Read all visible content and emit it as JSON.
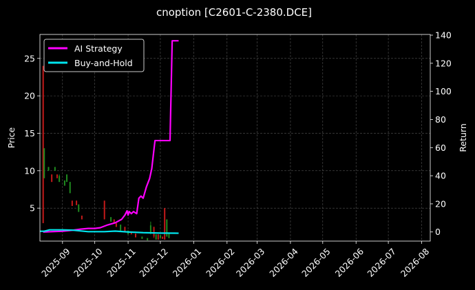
{
  "chart_data": {
    "type": "line",
    "title": "cnoption [C2601-C-2380.DCE]",
    "ylabel_left": "Price",
    "ylabel_right": "Return",
    "xlabel": "",
    "x_ticks": [
      "2025-09",
      "2025-10",
      "2025-11",
      "2025-12",
      "2026-01",
      "2026-02",
      "2026-03",
      "2026-04",
      "2026-05",
      "2026-06",
      "2026-07",
      "2026-08"
    ],
    "x_tick_dates": [
      "2025-09-01",
      "2025-10-01",
      "2025-11-01",
      "2025-12-01",
      "2026-01-01",
      "2026-02-01",
      "2026-03-01",
      "2026-04-01",
      "2026-05-01",
      "2026-06-01",
      "2026-07-01",
      "2026-08-01"
    ],
    "x_range": [
      "2025-08-11",
      "2026-08-09"
    ],
    "left_ticks": [
      5,
      10,
      15,
      20,
      25
    ],
    "ylim_left": [
      0.6,
      28.2
    ],
    "right_ticks": [
      0,
      20,
      40,
      60,
      80,
      100,
      120,
      140
    ],
    "ylim_right": [
      -6.5,
      140.5
    ],
    "grid": true,
    "legend_position": "upper-left",
    "colors": {
      "background": "#000000",
      "ai_strategy": "#ff00ff",
      "buy_and_hold": "#00e5ee",
      "candle_up": "#1f8b1f",
      "candle_down": "#c41a1a",
      "grid": "#555555"
    },
    "series": [
      {
        "name": "AI Strategy",
        "axis": "right",
        "points": [
          [
            "2025-08-14",
            0
          ],
          [
            "2025-09-01",
            0.5
          ],
          [
            "2025-09-10",
            1.2
          ],
          [
            "2025-09-18",
            2.0
          ],
          [
            "2025-09-25",
            2.5
          ],
          [
            "2025-10-01",
            2.5
          ],
          [
            "2025-10-06",
            3.0
          ],
          [
            "2025-10-13",
            5.0
          ],
          [
            "2025-10-20",
            6.5
          ],
          [
            "2025-10-26",
            9.0
          ],
          [
            "2025-10-29",
            12.0
          ],
          [
            "2025-10-31",
            15.0
          ],
          [
            "2025-11-01",
            12.0
          ],
          [
            "2025-11-02",
            14.5
          ],
          [
            "2025-11-04",
            13.0
          ],
          [
            "2025-11-06",
            14.5
          ],
          [
            "2025-11-09",
            13.0
          ],
          [
            "2025-11-11",
            24.0
          ],
          [
            "2025-11-13",
            25.5
          ],
          [
            "2025-11-15",
            24.0
          ],
          [
            "2025-11-18",
            32.0
          ],
          [
            "2025-11-21",
            38.0
          ],
          [
            "2025-11-23",
            45.0
          ],
          [
            "2025-11-26",
            65.0
          ],
          [
            "2025-12-10",
            65.0
          ],
          [
            "2025-12-12",
            136.0
          ],
          [
            "2025-12-18",
            136.0
          ]
        ]
      },
      {
        "name": "Buy-and-Hold",
        "axis": "right",
        "points": [
          [
            "2025-08-11",
            0.5
          ],
          [
            "2025-08-15",
            0.5
          ],
          [
            "2025-08-20",
            1.5
          ],
          [
            "2025-09-01",
            1.5
          ],
          [
            "2025-09-10",
            1.3
          ],
          [
            "2025-09-25",
            0.2
          ],
          [
            "2025-10-10",
            0.2
          ],
          [
            "2025-10-20",
            0.6
          ],
          [
            "2025-11-01",
            0.0
          ],
          [
            "2025-11-15",
            -0.5
          ],
          [
            "2025-12-01",
            -0.8
          ],
          [
            "2025-12-18",
            -0.9
          ]
        ]
      }
    ],
    "candles": [
      {
        "date": "2025-08-14",
        "open": 24,
        "close": 3,
        "high": 24,
        "low": 3
      },
      {
        "date": "2025-08-15",
        "open": 9,
        "close": 13,
        "high": 13,
        "low": 9
      },
      {
        "date": "2025-08-19",
        "open": 10,
        "close": 10.5,
        "high": 10.5,
        "low": 10
      },
      {
        "date": "2025-08-22",
        "open": 9.5,
        "close": 8.5,
        "high": 9.5,
        "low": 8.5
      },
      {
        "date": "2025-08-25",
        "open": 10,
        "close": 10.5,
        "high": 10.5,
        "low": 10
      },
      {
        "date": "2025-08-27",
        "open": 9.5,
        "close": 9,
        "high": 9.5,
        "low": 9
      },
      {
        "date": "2025-08-29",
        "open": 8.5,
        "close": 9.3,
        "high": 9.5,
        "low": 8.5
      },
      {
        "date": "2025-09-03",
        "open": 8,
        "close": 8.7,
        "high": 8.7,
        "low": 8
      },
      {
        "date": "2025-09-05",
        "open": 8.5,
        "close": 9.5,
        "high": 9.5,
        "low": 8.5
      },
      {
        "date": "2025-09-08",
        "open": 7,
        "close": 8.5,
        "high": 8.5,
        "low": 7
      },
      {
        "date": "2025-09-10",
        "open": 6,
        "close": 5.3,
        "high": 6,
        "low": 5.3
      },
      {
        "date": "2025-09-14",
        "open": 6,
        "close": 5.4,
        "high": 6,
        "low": 5.4
      },
      {
        "date": "2025-09-16",
        "open": 4.5,
        "close": 5.5,
        "high": 5.5,
        "low": 4.5
      },
      {
        "date": "2025-09-19",
        "open": 4,
        "close": 3.5,
        "high": 4,
        "low": 3.5
      },
      {
        "date": "2025-10-10",
        "open": 6,
        "close": 3.5,
        "high": 6,
        "low": 3.5
      },
      {
        "date": "2025-10-16",
        "open": 3.2,
        "close": 3.8,
        "high": 3.8,
        "low": 3.2
      },
      {
        "date": "2025-10-19",
        "open": 3.5,
        "close": 3.0,
        "high": 3.5,
        "low": 3.0
      },
      {
        "date": "2025-10-21",
        "open": 3.0,
        "close": 2.5,
        "high": 3.0,
        "low": 2.5
      },
      {
        "date": "2025-10-25",
        "open": 2.0,
        "close": 2.8,
        "high": 2.8,
        "low": 2.0
      },
      {
        "date": "2025-10-29",
        "open": 2.5,
        "close": 1.8,
        "high": 2.5,
        "low": 1.8
      },
      {
        "date": "2025-11-01",
        "open": 1.5,
        "close": 2.0,
        "high": 2.0,
        "low": 1.5
      },
      {
        "date": "2025-11-04",
        "open": 1.8,
        "close": 1.5,
        "high": 1.8,
        "low": 1.5
      },
      {
        "date": "2025-11-08",
        "open": 1.6,
        "close": 1.1,
        "high": 1.6,
        "low": 1.1
      },
      {
        "date": "2025-11-14",
        "open": 0.9,
        "close": 1.2,
        "high": 1.2,
        "low": 0.9
      },
      {
        "date": "2025-11-19",
        "open": 0.7,
        "close": 1.0,
        "high": 1.0,
        "low": 0.7
      },
      {
        "date": "2025-11-22",
        "open": 1.8,
        "close": 2.7,
        "high": 3.2,
        "low": 1.5
      },
      {
        "date": "2025-11-25",
        "open": 2.5,
        "close": 1.2,
        "high": 2.5,
        "low": 1.0
      },
      {
        "date": "2025-11-27",
        "open": 0.8,
        "close": 1.5,
        "high": 1.5,
        "low": 0.8
      },
      {
        "date": "2025-11-29",
        "open": 1.5,
        "close": 0.8,
        "high": 1.5,
        "low": 0.8
      },
      {
        "date": "2025-12-01",
        "open": 1.0,
        "close": 1.4,
        "high": 1.4,
        "low": 1.0
      },
      {
        "date": "2025-12-03",
        "open": 1.2,
        "close": 0.9,
        "high": 1.2,
        "low": 0.9
      },
      {
        "date": "2025-12-05",
        "open": 5.0,
        "close": 0.8,
        "high": 5.0,
        "low": 0.8
      },
      {
        "date": "2025-12-07",
        "open": 1.2,
        "close": 3.5,
        "high": 3.5,
        "low": 1.2
      },
      {
        "date": "2025-12-09",
        "open": 1.0,
        "close": 1.6,
        "high": 1.6,
        "low": 1.0
      }
    ]
  }
}
